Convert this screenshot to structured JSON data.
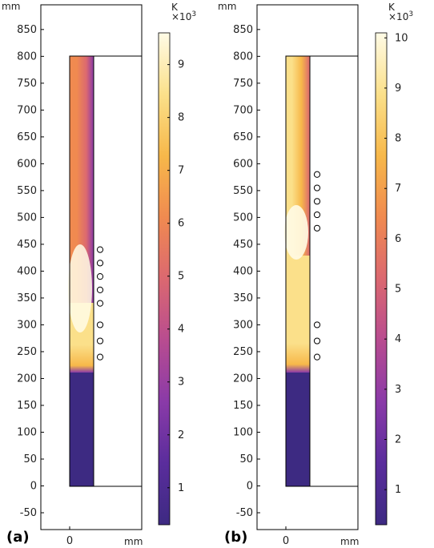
{
  "colors": {
    "colormap": [
      "#3d2a82",
      "#5a2d9c",
      "#8a3aa8",
      "#b84c90",
      "#db6870",
      "#f08a50",
      "#f7b84a",
      "#fbe08a",
      "#fffbe6"
    ],
    "frame": "#000000",
    "marker": "#000000"
  },
  "chart_data": [
    {
      "panel_label": "(a)",
      "type": "heatmap",
      "y_unit_label": "mm",
      "x_unit_label": "mm",
      "ylim": [
        -82,
        900
      ],
      "y_ticks": [
        -50,
        0,
        50,
        100,
        150,
        200,
        250,
        300,
        350,
        400,
        450,
        500,
        550,
        600,
        650,
        700,
        750,
        800,
        850
      ],
      "x_ticks": [
        {
          "value": 0,
          "label": "0"
        }
      ],
      "domain_y": [
        0,
        800
      ],
      "heated_zones": [
        {
          "y_from": 210,
          "y_to": 800
        },
        {
          "y_from": 210,
          "y_to": 340
        }
      ],
      "markers_y": [
        440,
        415,
        390,
        365,
        340,
        300,
        270,
        240
      ],
      "colorbar": {
        "unit": "K",
        "multiplier": "×10",
        "exponent": "3",
        "range": [
          0.3,
          9.6
        ],
        "ticks": [
          1,
          2,
          3,
          4,
          5,
          6,
          7,
          8,
          9
        ]
      }
    },
    {
      "panel_label": "(b)",
      "type": "heatmap",
      "y_unit_label": "mm",
      "x_unit_label": "mm",
      "ylim": [
        -82,
        900
      ],
      "y_ticks": [
        -50,
        0,
        50,
        100,
        150,
        200,
        250,
        300,
        350,
        400,
        450,
        500,
        550,
        600,
        650,
        700,
        750,
        800,
        850
      ],
      "x_ticks": [
        {
          "value": 0,
          "label": "0"
        }
      ],
      "domain_y": [
        0,
        800
      ],
      "heated_zones": [
        {
          "y_from": 210,
          "y_to": 800
        },
        {
          "y_from": 210,
          "y_to": 430
        }
      ],
      "markers_y": [
        580,
        555,
        530,
        505,
        480,
        300,
        270,
        240
      ],
      "colorbar": {
        "unit": "K",
        "multiplier": "×10",
        "exponent": "3",
        "range": [
          0.3,
          10.1
        ],
        "ticks": [
          1,
          2,
          3,
          4,
          5,
          6,
          7,
          8,
          9,
          10
        ]
      }
    }
  ]
}
